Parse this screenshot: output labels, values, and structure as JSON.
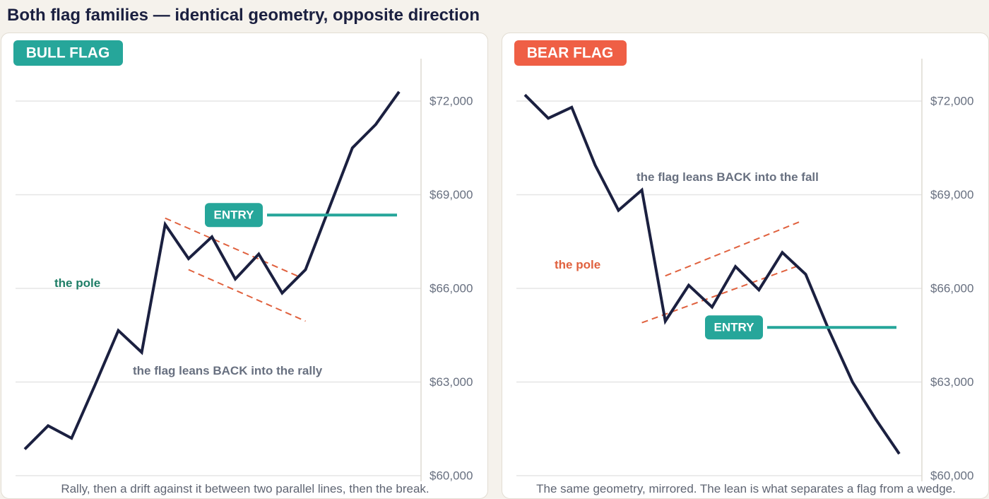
{
  "page": {
    "title": "Both flag families — identical geometry, opposite direction"
  },
  "colors": {
    "background": "#f5f2ec",
    "panel": "#ffffff",
    "price_line": "#1b2040",
    "bull": "#26a69a",
    "bull_label": "#1e7d66",
    "bear": "#ef5f45",
    "bear_label": "#e0613e",
    "channel": "#e0613e",
    "grid": "#e6e6e6",
    "muted_text": "#687080"
  },
  "chart_data": [
    {
      "type": "line",
      "tag": "BULL FLAG",
      "ylim": [
        60000,
        73000
      ],
      "y_ticks": [
        72000,
        69000,
        66000,
        63000,
        60000
      ],
      "y_tick_labels": [
        "$72,000",
        "$69,000",
        "$66,000",
        "$63,000",
        "$60,000"
      ],
      "x": [
        0,
        1,
        2,
        3,
        4,
        5,
        6,
        7,
        8,
        9,
        10,
        11,
        12,
        13,
        14,
        15,
        16
      ],
      "series": [
        {
          "values": [
            60850,
            61600,
            61200,
            62900,
            64650,
            63950,
            68050,
            66950,
            67650,
            66300,
            67100,
            65850,
            66600,
            68550,
            70500,
            71250,
            72300
          ]
        }
      ],
      "channel_upper": [
        {
          "x": 6,
          "y": 68250
        },
        {
          "x": 11.8,
          "y": 66350
        }
      ],
      "channel_lower": [
        {
          "x": 7,
          "y": 66600
        },
        {
          "x": 12,
          "y": 64950
        }
      ],
      "entry": {
        "label": "ENTRY",
        "value": 68350
      },
      "annotations": {
        "pole": "the pole",
        "flag": "the flag leans BACK into the rally"
      },
      "caption": "Rally, then a drift against it between two parallel lines, then the break."
    },
    {
      "type": "line",
      "tag": "BEAR FLAG",
      "ylim": [
        60000,
        73000
      ],
      "y_ticks": [
        72000,
        69000,
        66000,
        63000,
        60000
      ],
      "y_tick_labels": [
        "$72,000",
        "$69,000",
        "$66,000",
        "$63,000",
        "$60,000"
      ],
      "x": [
        0,
        1,
        2,
        3,
        4,
        5,
        6,
        7,
        8,
        9,
        10,
        11,
        12,
        13,
        14,
        15,
        16
      ],
      "series": [
        {
          "values": [
            72200,
            71450,
            71800,
            69950,
            68500,
            69150,
            64950,
            66100,
            65400,
            66700,
            65950,
            67150,
            66450,
            64650,
            63000,
            61800,
            60700
          ]
        }
      ],
      "channel_upper": [
        {
          "x": 6,
          "y": 66400
        },
        {
          "x": 11.8,
          "y": 68150
        }
      ],
      "channel_lower": [
        {
          "x": 5,
          "y": 64900
        },
        {
          "x": 11.6,
          "y": 66700
        }
      ],
      "entry": {
        "label": "ENTRY",
        "value": 64750
      },
      "annotations": {
        "pole": "the pole",
        "flag": "the flag leans BACK into the fall"
      },
      "caption": "The same geometry, mirrored. The lean is what separates a flag from a wedge."
    }
  ]
}
